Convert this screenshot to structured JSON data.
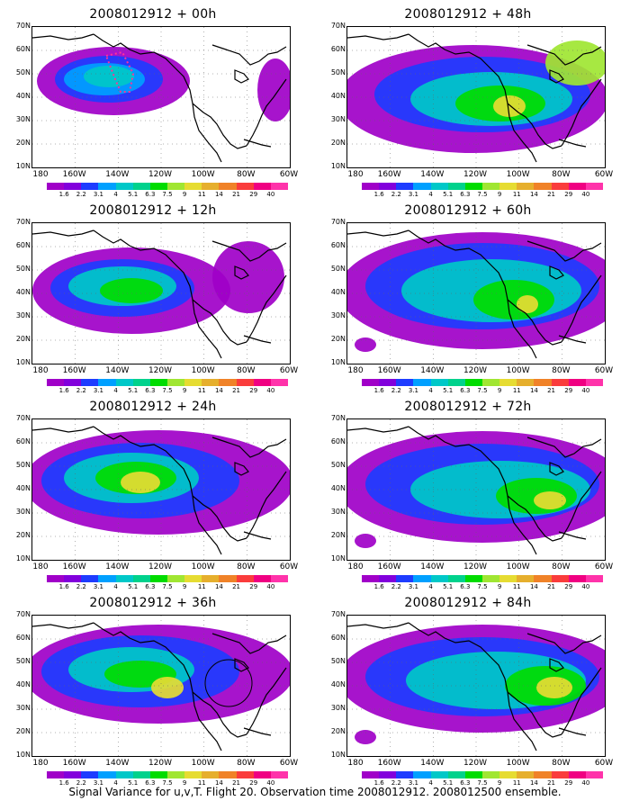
{
  "caption": "Signal Variance for u,v,T. Flight 20. Observation time 2008012912. 2008012500 ensemble.",
  "lat_labels": [
    "70N",
    "60N",
    "50N",
    "40N",
    "30N",
    "20N",
    "10N"
  ],
  "lon_labels": [
    "180",
    "160W",
    "140W",
    "120W",
    "100W",
    "80W",
    "60W"
  ],
  "colorbar": {
    "labels": [
      "1.6",
      "2.2",
      "3.1",
      "4",
      "5.1",
      "6.3",
      "7.5",
      "9",
      "11",
      "14",
      "21",
      "29",
      "40"
    ],
    "colors": [
      "#a000c8",
      "#8200dc",
      "#1e3cff",
      "#00a0ff",
      "#00c8c8",
      "#00d28c",
      "#00dc00",
      "#a0e632",
      "#e6dc32",
      "#e6af2d",
      "#f08228",
      "#fa3c3c",
      "#f00082",
      "#ff33aa"
    ]
  },
  "panels": [
    {
      "title": "2008012912 + 00h",
      "col": 0,
      "row": 0
    },
    {
      "title": "2008012912 + 48h",
      "col": 1,
      "row": 0
    },
    {
      "title": "2008012912 + 12h",
      "col": 0,
      "row": 1
    },
    {
      "title": "2008012912 + 60h",
      "col": 1,
      "row": 1
    },
    {
      "title": "2008012912 + 24h",
      "col": 0,
      "row": 2
    },
    {
      "title": "2008012912 + 72h",
      "col": 1,
      "row": 2
    },
    {
      "title": "2008012912 + 36h",
      "col": 0,
      "row": 3
    },
    {
      "title": "2008012912 + 84h",
      "col": 1,
      "row": 3
    }
  ]
}
